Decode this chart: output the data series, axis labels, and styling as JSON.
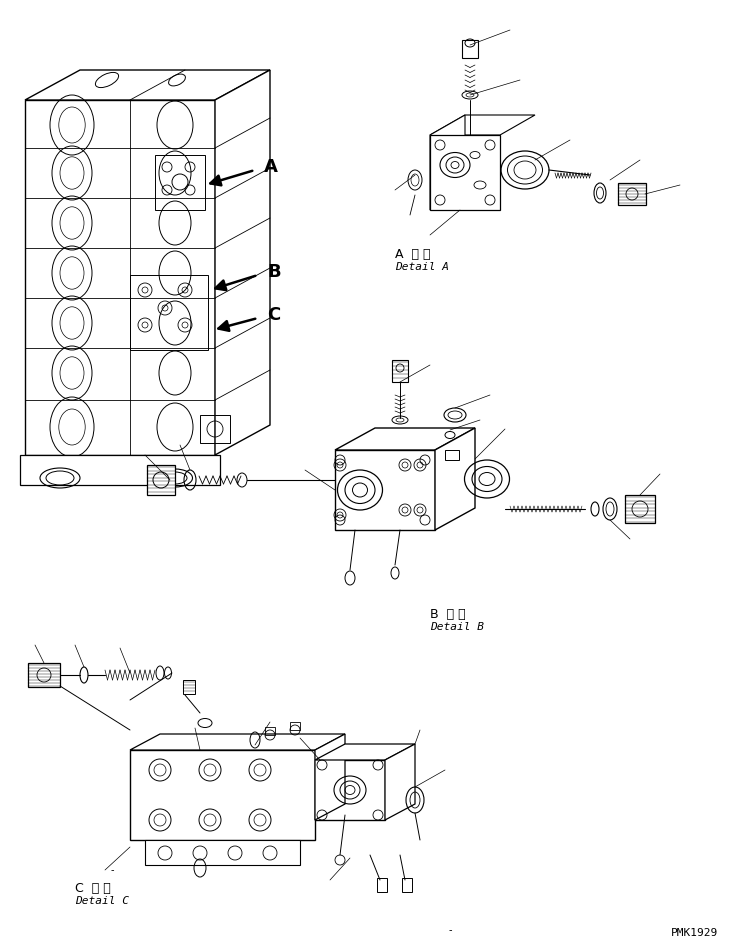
{
  "bg_color": "#ffffff",
  "line_color": "#000000",
  "fig_width": 7.29,
  "fig_height": 9.5,
  "dpi": 100,
  "labels": {
    "detail_a_jp": "A  詳 細",
    "detail_a_en": "Detail A",
    "detail_b_jp": "B  詳 細",
    "detail_b_en": "Detail B",
    "detail_c_jp": "C  詳 細",
    "detail_c_en": "Detail C",
    "label_a": "A",
    "label_b": "B",
    "label_c": "C",
    "watermark": "PMK1929"
  },
  "font_sizes": {
    "label_abc": 13,
    "detail_jp": 9,
    "detail_en": 8,
    "watermark": 8
  },
  "colors": {
    "line": "#000000",
    "bg": "#ffffff"
  }
}
